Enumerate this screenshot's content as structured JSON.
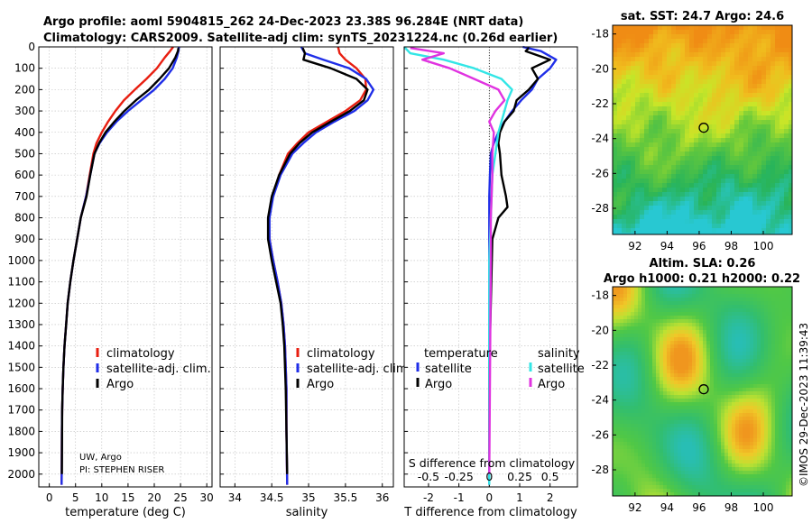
{
  "title": {
    "line1": "Argo profile: aoml 5904815_262 24-Dec-2023 23.38S 96.284E (NRT data)",
    "line2": "Climatology: CARS2009. Satellite-adj clim: synTS_20231224.nc (0.26d earlier)"
  },
  "colors": {
    "climatology": "#e81e10",
    "satellite": "#1f2ee8",
    "argo": "#000000",
    "sat_temp": "#1f2ee8",
    "sat_sal": "#33e6e6",
    "argo_sal": "#e033e0"
  },
  "credits": {
    "line1": "UW, Argo",
    "line2": "PI: STEPHEN RISER"
  },
  "side": {
    "imos_stamp": "©IMOS 29-Dec-2023 11:39:43"
  },
  "chart_data": [
    {
      "type": "line",
      "title": "",
      "xlabel": "temperature (deg C)",
      "ylabel": "",
      "xlim": [
        -2,
        31
      ],
      "ylim": [
        2060,
        0
      ],
      "y_reversed": true,
      "xticks": [
        0,
        5,
        10,
        15,
        20,
        25,
        30
      ],
      "yticks": [
        0,
        100,
        200,
        300,
        400,
        500,
        600,
        700,
        800,
        900,
        1000,
        1100,
        1200,
        1300,
        1400,
        1500,
        1600,
        1700,
        1800,
        1900,
        2000
      ],
      "legend": [
        "climatology",
        "satellite-adj. clim.",
        "Argo"
      ],
      "series": [
        {
          "name": "climatology",
          "color": "#e81e10",
          "x": [
            23.6,
            23.0,
            22.0,
            20.5,
            18.5,
            16.3,
            14.2,
            12.6,
            11.2,
            10.0,
            9.0,
            8.4,
            7.7,
            7.0,
            6.0,
            5.3,
            4.6,
            4.0,
            3.5,
            3.2,
            2.9,
            2.7,
            2.55,
            2.45,
            2.4,
            2.35
          ],
          "y": [
            0,
            20,
            50,
            100,
            150,
            200,
            250,
            300,
            350,
            400,
            450,
            500,
            600,
            700,
            800,
            900,
            1000,
            1100,
            1200,
            1300,
            1400,
            1500,
            1600,
            1700,
            1800,
            2050
          ]
        },
        {
          "name": "satellite-adj. clim.",
          "color": "#1f2ee8",
          "x": [
            24.7,
            24.6,
            24.3,
            23.5,
            22.0,
            20.0,
            17.5,
            15.0,
            12.8,
            11.0,
            9.6,
            8.6,
            7.8,
            7.0,
            6.0,
            5.3,
            4.6,
            4.0,
            3.5,
            3.2,
            2.9,
            2.7,
            2.55,
            2.45,
            2.4,
            2.35
          ],
          "y": [
            0,
            20,
            50,
            100,
            150,
            200,
            250,
            300,
            350,
            400,
            450,
            500,
            600,
            700,
            800,
            900,
            1000,
            1100,
            1200,
            1300,
            1400,
            1500,
            1600,
            1700,
            1800,
            2050
          ]
        },
        {
          "name": "Argo",
          "color": "#000000",
          "x": [
            24.6,
            24.5,
            24.0,
            22.8,
            21.0,
            19.0,
            16.5,
            14.3,
            12.4,
            10.7,
            9.5,
            8.6,
            7.8,
            7.1,
            6.0,
            5.3,
            4.6,
            4.0,
            3.5,
            3.2,
            2.9,
            2.7,
            2.55,
            2.45,
            2.4
          ],
          "y": [
            5,
            20,
            50,
            100,
            150,
            200,
            250,
            300,
            350,
            400,
            450,
            500,
            600,
            700,
            800,
            900,
            1000,
            1100,
            1200,
            1300,
            1400,
            1500,
            1600,
            1700,
            2000
          ]
        }
      ]
    },
    {
      "type": "line",
      "title": "",
      "xlabel": "salinity",
      "ylabel": "",
      "xlim": [
        33.8,
        36.15
      ],
      "ylim": [
        2060,
        0
      ],
      "y_reversed": true,
      "xticks": [
        34,
        34.5,
        35,
        35.5,
        36
      ],
      "legend": [
        "climatology",
        "satellite-adj. clim.",
        "Argo"
      ],
      "series": [
        {
          "name": "climatology",
          "color": "#e81e10",
          "x": [
            35.4,
            35.42,
            35.5,
            35.65,
            35.77,
            35.78,
            35.7,
            35.5,
            35.25,
            35.0,
            34.85,
            34.72,
            34.6,
            34.51,
            34.46,
            34.47,
            34.52,
            34.58,
            34.63,
            34.66,
            34.68,
            34.69,
            34.7,
            34.7,
            34.71
          ],
          "y": [
            0,
            30,
            60,
            100,
            150,
            200,
            250,
            300,
            350,
            400,
            450,
            500,
            600,
            700,
            800,
            900,
            1000,
            1100,
            1200,
            1300,
            1400,
            1500,
            1600,
            1800,
            2050
          ]
        },
        {
          "name": "satellite-adj. clim.",
          "color": "#1f2ee8",
          "x": [
            34.9,
            34.95,
            35.2,
            35.55,
            35.78,
            35.88,
            35.8,
            35.62,
            35.35,
            35.1,
            34.93,
            34.78,
            34.62,
            34.52,
            34.47,
            34.47,
            34.52,
            34.58,
            34.63,
            34.66,
            34.68,
            34.69,
            34.7,
            34.7,
            34.71
          ],
          "y": [
            0,
            30,
            60,
            100,
            150,
            200,
            250,
            300,
            350,
            400,
            450,
            500,
            600,
            700,
            800,
            900,
            1000,
            1100,
            1200,
            1300,
            1400,
            1500,
            1600,
            1800,
            2050
          ]
        },
        {
          "name": "Argo",
          "color": "#000000",
          "x": [
            34.92,
            34.95,
            34.93,
            35.3,
            35.65,
            35.8,
            35.75,
            35.56,
            35.3,
            35.05,
            34.88,
            34.75,
            34.6,
            34.5,
            34.45,
            34.45,
            34.5,
            34.56,
            34.62,
            34.65,
            34.67,
            34.68,
            34.69,
            34.7,
            34.71
          ],
          "y": [
            5,
            30,
            60,
            100,
            150,
            200,
            250,
            300,
            350,
            400,
            450,
            500,
            600,
            700,
            800,
            900,
            1000,
            1100,
            1200,
            1300,
            1400,
            1500,
            1600,
            1800,
            2000
          ]
        }
      ]
    },
    {
      "type": "line",
      "title": "",
      "xlabel": "T difference from climatology",
      "x2label": "S difference from climatology",
      "xlim": [
        -2.8,
        2.9
      ],
      "ylim": [
        2060,
        0
      ],
      "y_reversed": true,
      "xticks": [
        -2,
        -1,
        0,
        1,
        2
      ],
      "x2ticks": [
        -0.5,
        -0.25,
        0,
        0.25,
        0.5
      ],
      "legend_temperature": {
        "heading": "temperature",
        "items": [
          "satellite",
          "Argo"
        ]
      },
      "legend_salinity": {
        "heading": "salinity",
        "items": [
          "satellite",
          "Argo"
        ]
      },
      "series": [
        {
          "name": "temperature satellite",
          "color": "#1f2ee8",
          "x": [
            1.1,
            1.7,
            2.2,
            2.0,
            1.6,
            1.4,
            1.05,
            0.75,
            0.5,
            0.3,
            0.15,
            0.05,
            0.02,
            0.0,
            0.0,
            0.0,
            0.0,
            0.0,
            0.0
          ],
          "y": [
            0,
            20,
            60,
            100,
            150,
            200,
            250,
            300,
            350,
            400,
            450,
            500,
            600,
            700,
            800,
            900,
            1000,
            1500,
            2050
          ]
        },
        {
          "name": "temperature Argo",
          "color": "#000000",
          "x": [
            1.3,
            1.2,
            2.0,
            1.4,
            1.6,
            1.3,
            0.9,
            0.8,
            0.5,
            0.35,
            0.3,
            0.35,
            0.4,
            0.55,
            0.6,
            0.3,
            0.1,
            0.0,
            0.0
          ],
          "y": [
            5,
            20,
            60,
            100,
            150,
            200,
            250,
            300,
            350,
            400,
            450,
            500,
            600,
            700,
            750,
            800,
            900,
            1500,
            2000
          ]
        },
        {
          "name": "salinity satellite",
          "color": "#33e6e6",
          "x": [
            -2.8,
            -2.6,
            -1.5,
            -0.5,
            0.4,
            0.75,
            0.6,
            0.5,
            0.4,
            0.3,
            0.2,
            0.1,
            0.05,
            0.0,
            0.0,
            0.0
          ],
          "y": [
            0,
            30,
            60,
            100,
            150,
            200,
            250,
            300,
            350,
            400,
            500,
            600,
            800,
            1000,
            1500,
            2050
          ]
        },
        {
          "name": "salinity Argo",
          "color": "#e033e0",
          "x": [
            -2.6,
            -1.5,
            -2.2,
            -1.3,
            -0.5,
            0.3,
            0.5,
            0.2,
            0.0,
            0.15,
            0.1,
            0.1,
            0.05,
            0.05,
            0.0
          ],
          "y": [
            5,
            30,
            60,
            100,
            150,
            200,
            250,
            300,
            350,
            400,
            500,
            600,
            800,
            1000,
            2000
          ]
        }
      ]
    },
    {
      "type": "heatmap",
      "title": "sat. SST: 24.7 Argo: 24.6",
      "xlim": [
        90.6,
        101.8
      ],
      "ylim": [
        -29.5,
        -17.5
      ],
      "xticks": [
        92,
        94,
        96,
        98,
        100
      ],
      "yticks": [
        -18,
        -20,
        -22,
        -24,
        -26,
        -28
      ],
      "marker": {
        "lon": 96.284,
        "lat": -23.38
      }
    },
    {
      "type": "heatmap",
      "title": "Altim. SLA: 0.26",
      "subtitle": "Argo h1000: 0.21 h2000: 0.22",
      "xlim": [
        90.6,
        101.8
      ],
      "ylim": [
        -29.5,
        -17.5
      ],
      "xticks": [
        92,
        94,
        96,
        98,
        100
      ],
      "yticks": [
        -18,
        -20,
        -22,
        -24,
        -26,
        -28
      ],
      "marker": {
        "lon": 96.284,
        "lat": -23.38
      }
    }
  ]
}
